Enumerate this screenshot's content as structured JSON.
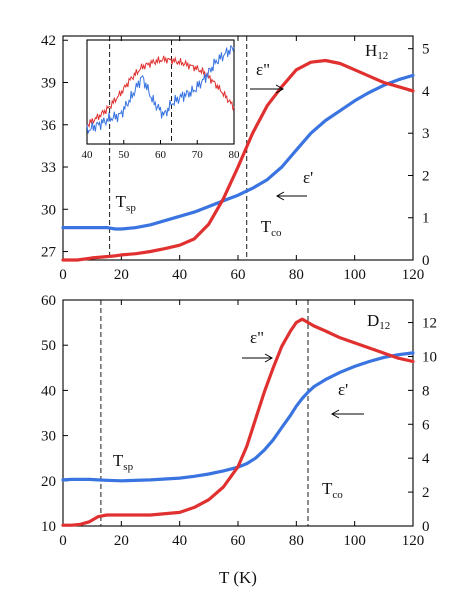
{
  "chart_data": [
    {
      "type": "line",
      "panel": "top",
      "sample_label": "H",
      "sample_sub": "12",
      "x": [
        0,
        5,
        10,
        15,
        18,
        20,
        25,
        30,
        35,
        40,
        45,
        50,
        55,
        60,
        65,
        70,
        75,
        80,
        85,
        90,
        95,
        100,
        105,
        110,
        115,
        120
      ],
      "xlim": [
        0,
        120
      ],
      "xticks": [
        "0",
        "20",
        "40",
        "60",
        "80",
        "100",
        "120"
      ],
      "ylim_left": [
        26.4,
        42.3
      ],
      "yticks_left": [
        "27",
        "30",
        "33",
        "36",
        "39",
        "42"
      ],
      "ylim_right": [
        0,
        5.3
      ],
      "yticks_right": [
        "0",
        "1",
        "2",
        "3",
        "4",
        "5"
      ],
      "series": [
        {
          "name": "ε'",
          "axis": "left",
          "color": "#3a74e0",
          "values": [
            28.7,
            28.7,
            28.7,
            28.7,
            28.6,
            28.6,
            28.7,
            28.9,
            29.2,
            29.5,
            29.8,
            30.2,
            30.6,
            31.0,
            31.5,
            32.1,
            33.0,
            34.2,
            35.4,
            36.3,
            37.0,
            37.7,
            38.3,
            38.8,
            39.2,
            39.5
          ]
        },
        {
          "name": "ε\"",
          "axis": "right",
          "color": "#e03030",
          "values": [
            0.0,
            0.0,
            0.05,
            0.08,
            0.1,
            0.12,
            0.15,
            0.2,
            0.27,
            0.35,
            0.5,
            0.85,
            1.45,
            2.2,
            3.0,
            3.65,
            4.1,
            4.5,
            4.68,
            4.72,
            4.65,
            4.5,
            4.35,
            4.2,
            4.1,
            4.0
          ]
        }
      ],
      "markers": [
        {
          "label": "T",
          "sub": "sp",
          "x": 16
        },
        {
          "label": "T",
          "sub": "co",
          "x": 63
        }
      ],
      "inset": {
        "xlim": [
          40,
          80
        ],
        "xticks": [
          "40",
          "50",
          "60",
          "70",
          "80"
        ],
        "marker_x": 63,
        "series": [
          {
            "name": "ε\"",
            "color": "#e03030",
            "x": [
              40,
              43,
              46,
              49,
              52,
              55,
              58,
              61,
              63,
              66,
              69,
              72,
              75,
              78,
              80
            ],
            "values": [
              0.2,
              0.28,
              0.38,
              0.52,
              0.68,
              0.8,
              0.85,
              0.88,
              0.87,
              0.84,
              0.8,
              0.74,
              0.62,
              0.48,
              0.38
            ]
          },
          {
            "name": "ε'",
            "color": "#3a74e0",
            "x": [
              40,
              43,
              46,
              49,
              52,
              55,
              58,
              61,
              63,
              66,
              69,
              72,
              75,
              78,
              80
            ],
            "values": [
              0.14,
              0.2,
              0.26,
              0.3,
              0.48,
              0.7,
              0.44,
              0.3,
              0.42,
              0.5,
              0.55,
              0.68,
              0.85,
              0.95,
              1.0
            ]
          }
        ]
      }
    },
    {
      "type": "line",
      "panel": "bottom",
      "sample_label": "D",
      "sample_sub": "12",
      "xlabel": "T (K)",
      "x": [
        0,
        3,
        6,
        9,
        12,
        15,
        20,
        30,
        40,
        45,
        50,
        55,
        60,
        63,
        66,
        69,
        72,
        75,
        78,
        80,
        82,
        84,
        86,
        90,
        95,
        100,
        105,
        110,
        115,
        120
      ],
      "xlim": [
        0,
        120
      ],
      "xticks": [
        "0",
        "20",
        "40",
        "60",
        "80",
        "100",
        "120"
      ],
      "ylim_left": [
        10,
        60
      ],
      "yticks_left": [
        "10",
        "20",
        "30",
        "40",
        "50",
        "60"
      ],
      "ylim_right": [
        0,
        13.33
      ],
      "yticks_right": [
        "0",
        "2",
        "4",
        "6",
        "8",
        "10",
        "12"
      ],
      "series": [
        {
          "name": "ε'",
          "axis": "left",
          "color": "#3a74e0",
          "values": [
            20.2,
            20.3,
            20.3,
            20.3,
            20.2,
            20.1,
            20.0,
            20.2,
            20.6,
            21.0,
            21.5,
            22.2,
            23.0,
            23.8,
            25.0,
            26.8,
            29.0,
            31.8,
            34.5,
            36.5,
            38.2,
            39.6,
            40.8,
            42.4,
            44.0,
            45.3,
            46.4,
            47.3,
            47.9,
            48.3
          ]
        },
        {
          "name": "ε\"",
          "axis": "right",
          "color": "#e03030",
          "values": [
            0.05,
            0.05,
            0.1,
            0.25,
            0.55,
            0.65,
            0.65,
            0.65,
            0.8,
            1.1,
            1.55,
            2.3,
            3.5,
            4.7,
            6.3,
            7.9,
            9.3,
            10.6,
            11.5,
            12.0,
            12.2,
            12.0,
            11.8,
            11.5,
            11.1,
            10.8,
            10.5,
            10.2,
            9.9,
            9.7
          ]
        }
      ],
      "markers": [
        {
          "label": "T",
          "sub": "sp",
          "x": 13
        },
        {
          "label": "T",
          "sub": "co",
          "x": 84
        }
      ]
    }
  ],
  "labels": {
    "top_eps2": "ε\"",
    "top_eps1": "ε'",
    "bot_eps2": "ε\"",
    "bot_eps1": "ε'"
  }
}
